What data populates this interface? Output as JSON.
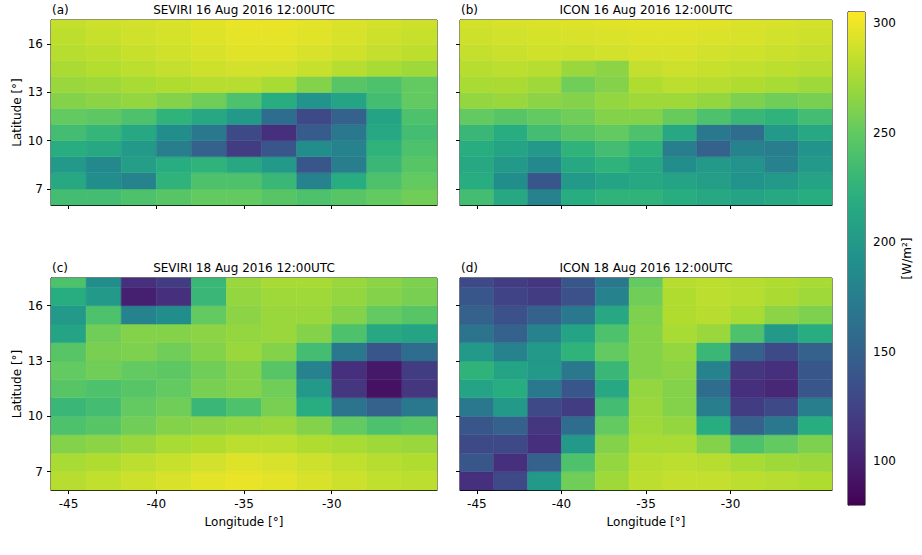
{
  "chart_data": [
    {
      "type": "heatmap",
      "panel_label": "(a)",
      "title": "SEVIRI 16 Aug 2016 12:00UTC",
      "ylabel": "Latitude [°]",
      "tick_labels": "y",
      "grid": false,
      "xlim": [
        -46,
        -24
      ],
      "ylim": [
        6,
        17.5
      ],
      "xticks": [
        -45,
        -40,
        -35,
        -30
      ],
      "yticks": [
        7,
        10,
        13,
        16
      ],
      "x": [
        -45,
        -43,
        -41,
        -39,
        -37,
        -35,
        -33,
        -31,
        -29,
        -27,
        -25
      ],
      "y": [
        6.5,
        7.5,
        8.5,
        9.5,
        10.5,
        11.5,
        12.5,
        13.5,
        14.5,
        15.5,
        16.5,
        17.5
      ],
      "values": [
        [
          235,
          235,
          240,
          245,
          250,
          250,
          245,
          240,
          245,
          250,
          255
        ],
        [
          215,
          190,
          180,
          225,
          240,
          240,
          230,
          180,
          220,
          240,
          250
        ],
        [
          200,
          185,
          205,
          220,
          225,
          215,
          200,
          140,
          175,
          230,
          245
        ],
        [
          220,
          215,
          200,
          175,
          150,
          120,
          140,
          190,
          180,
          225,
          240
        ],
        [
          235,
          228,
          215,
          190,
          170,
          130,
          110,
          145,
          170,
          215,
          235
        ],
        [
          250,
          248,
          240,
          225,
          215,
          200,
          160,
          130,
          150,
          210,
          240
        ],
        [
          262,
          265,
          268,
          262,
          255,
          240,
          220,
          195,
          210,
          235,
          250
        ],
        [
          270,
          272,
          275,
          278,
          280,
          280,
          275,
          262,
          245,
          240,
          250
        ],
        [
          276,
          279,
          282,
          285,
          288,
          290,
          290,
          286,
          280,
          275,
          272
        ],
        [
          280,
          283,
          286,
          289,
          292,
          295,
          295,
          292,
          289,
          285,
          283
        ],
        [
          283,
          286,
          289,
          291,
          294,
          297,
          297,
          295,
          292,
          288,
          286
        ],
        [
          285,
          288,
          290,
          292,
          295,
          298,
          298,
          296,
          293,
          290,
          288
        ]
      ]
    },
    {
      "type": "heatmap",
      "panel_label": "(b)",
      "title": "ICON 16 Aug 2016 12:00UTC",
      "tick_labels": false,
      "grid": false,
      "xlim": [
        -46,
        -24
      ],
      "ylim": [
        6,
        17.5
      ],
      "xticks": [
        -45,
        -40,
        -35,
        -30
      ],
      "yticks": [
        7,
        10,
        13,
        16
      ],
      "x": [
        -45,
        -43,
        -41,
        -39,
        -37,
        -35,
        -33,
        -31,
        -29,
        -27,
        -25
      ],
      "y": [
        6.5,
        7.5,
        8.5,
        9.5,
        10.5,
        11.5,
        12.5,
        13.5,
        14.5,
        15.5,
        16.5,
        17.5
      ],
      "values": [
        [
          235,
          215,
          180,
          220,
          225,
          225,
          220,
          215,
          210,
          215,
          220
        ],
        [
          220,
          190,
          140,
          200,
          210,
          215,
          210,
          205,
          195,
          200,
          210
        ],
        [
          215,
          200,
          185,
          215,
          225,
          215,
          190,
          200,
          195,
          180,
          200
        ],
        [
          220,
          210,
          200,
          225,
          235,
          225,
          175,
          150,
          180,
          175,
          195
        ],
        [
          230,
          220,
          235,
          245,
          250,
          240,
          215,
          170,
          160,
          200,
          215
        ],
        [
          250,
          245,
          250,
          255,
          262,
          262,
          252,
          240,
          230,
          225,
          235
        ],
        [
          268,
          270,
          265,
          262,
          268,
          272,
          272,
          268,
          260,
          255,
          258
        ],
        [
          275,
          276,
          272,
          255,
          262,
          278,
          282,
          280,
          278,
          275,
          272
        ],
        [
          280,
          282,
          280,
          270,
          265,
          285,
          288,
          286,
          284,
          282,
          280
        ],
        [
          285,
          287,
          289,
          288,
          290,
          292,
          292,
          290,
          289,
          287,
          285
        ],
        [
          288,
          290,
          291,
          292,
          293,
          294,
          294,
          293,
          292,
          290,
          288
        ],
        [
          290,
          292,
          293,
          294,
          295,
          296,
          296,
          295,
          293,
          292,
          290
        ]
      ]
    },
    {
      "type": "heatmap",
      "panel_label": "(c)",
      "title": "SEVIRI 18 Aug 2016 12:00UTC",
      "xlabel": "Longitude [°]",
      "ylabel": "Latitude [°]",
      "grid": false,
      "xlim": [
        -46,
        -24
      ],
      "ylim": [
        6,
        17.5
      ],
      "xticks": [
        -45,
        -40,
        -35,
        -30
      ],
      "yticks": [
        7,
        10,
        13,
        16
      ],
      "x": [
        -45,
        -43,
        -41,
        -39,
        -37,
        -35,
        -33,
        -31,
        -29,
        -27,
        -25
      ],
      "y": [
        6.5,
        7.5,
        8.5,
        9.5,
        10.5,
        11.5,
        12.5,
        13.5,
        14.5,
        15.5,
        16.5,
        17.5
      ],
      "values": [
        [
          280,
          284,
          288,
          292,
          296,
          298,
          296,
          292,
          288,
          284,
          282
        ],
        [
          275,
          278,
          282,
          286,
          290,
          294,
          292,
          288,
          284,
          280,
          278
        ],
        [
          262,
          265,
          270,
          275,
          278,
          282,
          282,
          278,
          275,
          272,
          270
        ],
        [
          240,
          245,
          255,
          262,
          265,
          268,
          270,
          262,
          250,
          240,
          245
        ],
        [
          230,
          235,
          250,
          255,
          230,
          240,
          258,
          220,
          165,
          150,
          170
        ],
        [
          245,
          240,
          245,
          250,
          258,
          262,
          255,
          200,
          115,
          90,
          115
        ],
        [
          250,
          255,
          250,
          248,
          255,
          262,
          245,
          180,
          110,
          95,
          120
        ],
        [
          245,
          258,
          260,
          255,
          262,
          270,
          262,
          235,
          170,
          140,
          160
        ],
        [
          210,
          255,
          262,
          262,
          265,
          268,
          270,
          262,
          240,
          215,
          210
        ],
        [
          200,
          240,
          180,
          190,
          250,
          265,
          270,
          270,
          262,
          250,
          245
        ],
        [
          220,
          200,
          100,
          110,
          230,
          268,
          272,
          272,
          268,
          262,
          258
        ],
        [
          240,
          190,
          110,
          120,
          230,
          270,
          275,
          275,
          270,
          265,
          260
        ]
      ]
    },
    {
      "type": "heatmap",
      "panel_label": "(d)",
      "title": "ICON 18 Aug 2016 12:00UTC",
      "xlabel": "Longitude [°]",
      "tick_labels": "x",
      "grid": false,
      "xlim": [
        -46,
        -24
      ],
      "ylim": [
        6,
        17.5
      ],
      "xticks": [
        -45,
        -40,
        -35,
        -30
      ],
      "yticks": [
        7,
        10,
        13,
        16
      ],
      "x": [
        -45,
        -43,
        -41,
        -39,
        -37,
        -35,
        -33,
        -31,
        -29,
        -27,
        -25
      ],
      "y": [
        6.5,
        7.5,
        8.5,
        9.5,
        10.5,
        11.5,
        12.5,
        13.5,
        14.5,
        15.5,
        16.5,
        17.5
      ],
      "values": [
        [
          110,
          130,
          200,
          255,
          272,
          282,
          285,
          285,
          282,
          280,
          278
        ],
        [
          140,
          110,
          150,
          240,
          268,
          280,
          282,
          280,
          275,
          272,
          270
        ],
        [
          130,
          130,
          110,
          200,
          262,
          275,
          275,
          262,
          240,
          250,
          260
        ],
        [
          140,
          150,
          115,
          160,
          250,
          272,
          268,
          220,
          150,
          170,
          220
        ],
        [
          170,
          200,
          130,
          120,
          235,
          270,
          262,
          175,
          120,
          130,
          175
        ],
        [
          210,
          220,
          170,
          140,
          215,
          268,
          262,
          160,
          110,
          105,
          140
        ],
        [
          225,
          210,
          200,
          170,
          230,
          262,
          265,
          180,
          115,
          110,
          140
        ],
        [
          200,
          180,
          200,
          225,
          250,
          262,
          268,
          230,
          150,
          130,
          150
        ],
        [
          165,
          150,
          180,
          210,
          240,
          262,
          275,
          270,
          240,
          200,
          220
        ],
        [
          150,
          135,
          150,
          170,
          215,
          260,
          278,
          280,
          275,
          265,
          260
        ],
        [
          140,
          125,
          120,
          135,
          180,
          255,
          278,
          282,
          280,
          276,
          272
        ],
        [
          130,
          120,
          115,
          140,
          170,
          250,
          280,
          282,
          280,
          278,
          275
        ]
      ]
    }
  ],
  "colorbar": {
    "range": [
      80,
      305
    ],
    "ticks": [
      100,
      150,
      200,
      250,
      300
    ],
    "label": "[W/m²]"
  }
}
